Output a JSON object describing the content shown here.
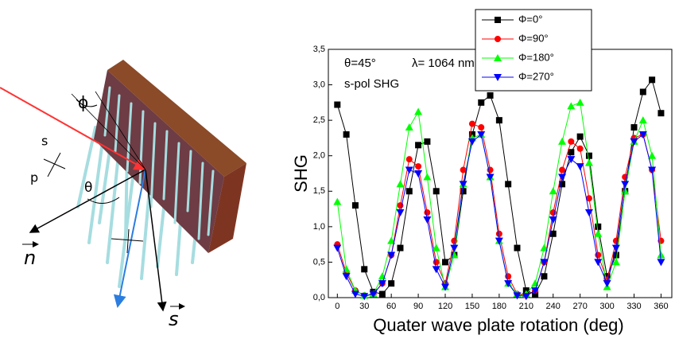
{
  "diagram": {
    "labels": {
      "phi": "ϕ",
      "s_pol": "s",
      "p_pol": "p",
      "theta": "θ",
      "normal": "n",
      "surface": "s"
    }
  },
  "chart_data": {
    "type": "line",
    "annotations": [
      "θ=45°",
      "λ= 1064 nm",
      "s-pol SHG"
    ],
    "x_label": "Quater wave plate rotation (deg)",
    "y_label": "SHG",
    "x": [
      0,
      10,
      20,
      30,
      40,
      50,
      60,
      70,
      80,
      90,
      100,
      110,
      120,
      130,
      140,
      150,
      160,
      170,
      180,
      190,
      200,
      210,
      220,
      230,
      240,
      250,
      260,
      270,
      280,
      290,
      300,
      310,
      320,
      330,
      340,
      350,
      360
    ],
    "series": [
      {
        "name": "Φ=0°",
        "color": "#000000",
        "marker": "square",
        "values": [
          2.72,
          2.3,
          1.3,
          0.4,
          0.08,
          0.05,
          0.2,
          0.7,
          1.5,
          2.15,
          2.2,
          1.5,
          0.5,
          0.6,
          1.5,
          2.3,
          2.75,
          2.85,
          2.5,
          1.6,
          0.7,
          0.1,
          0.05,
          0.3,
          0.9,
          1.6,
          2.05,
          2.27,
          2.0,
          1.0,
          0.3,
          0.6,
          1.5,
          2.4,
          2.9,
          3.07,
          2.6
        ]
      },
      {
        "name": "Φ=90°",
        "color": "#ff0000",
        "marker": "circle",
        "values": [
          0.75,
          0.35,
          0.1,
          0.03,
          0.05,
          0.2,
          0.6,
          1.3,
          1.95,
          1.85,
          1.2,
          0.5,
          0.2,
          0.8,
          1.8,
          2.45,
          2.4,
          1.8,
          0.9,
          0.3,
          0.05,
          0.03,
          0.1,
          0.5,
          1.2,
          1.8,
          2.2,
          2.1,
          1.4,
          0.6,
          0.25,
          0.8,
          1.7,
          2.25,
          2.3,
          1.8,
          0.8
        ]
      },
      {
        "name": "Φ=180°",
        "color": "#00ff00",
        "marker": "triangle-up",
        "values": [
          1.35,
          0.4,
          0.1,
          0.03,
          0.05,
          0.3,
          0.8,
          1.6,
          2.4,
          2.62,
          1.7,
          0.7,
          0.15,
          0.6,
          1.6,
          2.25,
          2.3,
          1.7,
          0.8,
          0.2,
          0.05,
          0.05,
          0.2,
          0.7,
          1.5,
          2.2,
          2.7,
          2.75,
          1.9,
          0.9,
          0.15,
          0.5,
          1.5,
          2.2,
          2.5,
          2.0,
          0.6
        ]
      },
      {
        "name": "Φ=270°",
        "color": "#0000ff",
        "marker": "triangle-down",
        "values": [
          0.7,
          0.3,
          0.05,
          0.02,
          0.05,
          0.2,
          0.6,
          1.2,
          1.8,
          1.75,
          1.1,
          0.4,
          0.15,
          0.7,
          1.6,
          2.2,
          2.3,
          1.7,
          0.8,
          0.2,
          0.03,
          0.02,
          0.1,
          0.5,
          1.1,
          1.7,
          1.95,
          1.85,
          1.2,
          0.5,
          0.2,
          0.7,
          1.6,
          2.2,
          2.3,
          1.8,
          0.5
        ]
      }
    ],
    "xlim": [
      -10,
      372
    ],
    "xticks": [
      0,
      30,
      60,
      90,
      120,
      150,
      180,
      210,
      240,
      270,
      300,
      330,
      360
    ],
    "ylim": [
      0,
      3.5
    ],
    "yticks": [
      {
        "value": 0,
        "label": "0,0"
      },
      {
        "value": 0.5,
        "label": "0,5"
      },
      {
        "value": 1,
        "label": "1,0"
      },
      {
        "value": 1.5,
        "label": "1,5"
      },
      {
        "value": 2,
        "label": "2,0"
      },
      {
        "value": 2.5,
        "label": "2,5"
      },
      {
        "value": 3,
        "label": "3,0"
      },
      {
        "value": 3.5,
        "label": "3,5"
      }
    ]
  }
}
